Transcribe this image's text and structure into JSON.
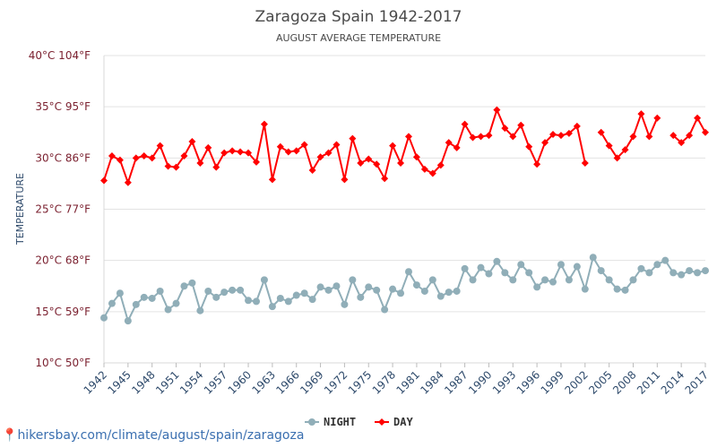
{
  "chart_data": {
    "type": "line",
    "title": "Zaragoza Spain 1942-2017",
    "subtitle": "AUGUST AVERAGE TEMPERATURE",
    "ylabel": "TEMPERATURE",
    "ylim": [
      10,
      40
    ],
    "y_ticks": [
      {
        "value": 10,
        "label": "10°C 50°F"
      },
      {
        "value": 15,
        "label": "15°C 59°F"
      },
      {
        "value": 20,
        "label": "20°C 68°F"
      },
      {
        "value": 25,
        "label": "25°C 77°F"
      },
      {
        "value": 30,
        "label": "30°C 86°F"
      },
      {
        "value": 35,
        "label": "35°C 95°F"
      },
      {
        "value": 40,
        "label": "40°C 104°F"
      }
    ],
    "x_ticks": [
      "1942",
      "1945",
      "1948",
      "1951",
      "1954",
      "1957",
      "1960",
      "1963",
      "1966",
      "1969",
      "1972",
      "1975",
      "1978",
      "1981",
      "1984",
      "1987",
      "1990",
      "1993",
      "1996",
      "1999",
      "2002",
      "2005",
      "2008",
      "2011",
      "2014",
      "2017"
    ],
    "x": [
      1942,
      1943,
      1944,
      1945,
      1946,
      1947,
      1948,
      1949,
      1950,
      1951,
      1952,
      1953,
      1954,
      1955,
      1956,
      1957,
      1958,
      1959,
      1960,
      1961,
      1962,
      1963,
      1964,
      1965,
      1966,
      1967,
      1968,
      1969,
      1970,
      1971,
      1972,
      1973,
      1974,
      1975,
      1976,
      1977,
      1978,
      1979,
      1980,
      1981,
      1982,
      1983,
      1984,
      1985,
      1986,
      1987,
      1988,
      1989,
      1990,
      1991,
      1992,
      1993,
      1994,
      1995,
      1996,
      1997,
      1998,
      1999,
      2000,
      2001,
      2002,
      2003,
      2004,
      2005,
      2006,
      2007,
      2008,
      2009,
      2010,
      2011,
      2012,
      2013,
      2014,
      2015,
      2016,
      2017
    ],
    "grid": true,
    "legend_position": "bottom",
    "series": [
      {
        "name": "NIGHT",
        "color": "#90aeb8",
        "marker": "circle",
        "values": [
          14.4,
          15.8,
          16.8,
          14.1,
          15.7,
          16.4,
          16.3,
          17.0,
          15.2,
          15.8,
          17.5,
          17.8,
          15.1,
          17.0,
          16.4,
          16.9,
          17.1,
          17.1,
          16.1,
          16.0,
          18.1,
          15.5,
          16.3,
          16.0,
          16.6,
          16.8,
          16.2,
          17.4,
          17.1,
          17.5,
          15.7,
          18.1,
          16.4,
          17.4,
          17.1,
          15.2,
          17.2,
          16.8,
          18.9,
          17.6,
          17.0,
          18.1,
          16.5,
          16.9,
          17.0,
          19.2,
          18.1,
          19.3,
          18.7,
          19.9,
          18.8,
          18.1,
          19.6,
          18.8,
          17.4,
          18.1,
          17.9,
          19.6,
          18.1,
          19.4,
          17.2,
          20.3,
          19.0,
          18.1,
          17.2,
          17.1,
          18.1,
          19.2,
          18.8,
          19.6,
          20.0,
          18.8,
          18.6,
          19.0,
          18.8,
          19.0
        ]
      },
      {
        "name": "DAY",
        "color": "#ff0000",
        "marker": "diamond",
        "values": [
          27.8,
          30.2,
          29.8,
          27.6,
          30.0,
          30.2,
          30.0,
          31.2,
          29.2,
          29.1,
          30.2,
          31.6,
          29.5,
          31.0,
          29.1,
          30.5,
          30.7,
          30.6,
          30.5,
          29.6,
          33.3,
          27.9,
          31.1,
          30.6,
          30.7,
          31.3,
          28.8,
          30.1,
          30.5,
          31.3,
          27.9,
          31.9,
          29.5,
          29.9,
          29.4,
          28.0,
          31.2,
          29.5,
          32.1,
          30.1,
          28.9,
          28.5,
          29.3,
          31.5,
          31.0,
          33.3,
          32.0,
          32.1,
          32.2,
          34.7,
          32.9,
          32.1,
          33.2,
          31.1,
          29.4,
          31.5,
          32.3,
          32.2,
          32.4,
          33.1,
          29.5,
          null,
          32.5,
          31.2,
          30.0,
          30.8,
          32.1,
          34.3,
          32.1,
          33.9,
          null,
          32.2,
          31.5,
          32.2,
          33.9,
          32.5
        ]
      }
    ]
  },
  "source": {
    "pin_icon": "map-pin-icon",
    "text": "hikersbay.com/climate/august/spain/zaragoza"
  }
}
